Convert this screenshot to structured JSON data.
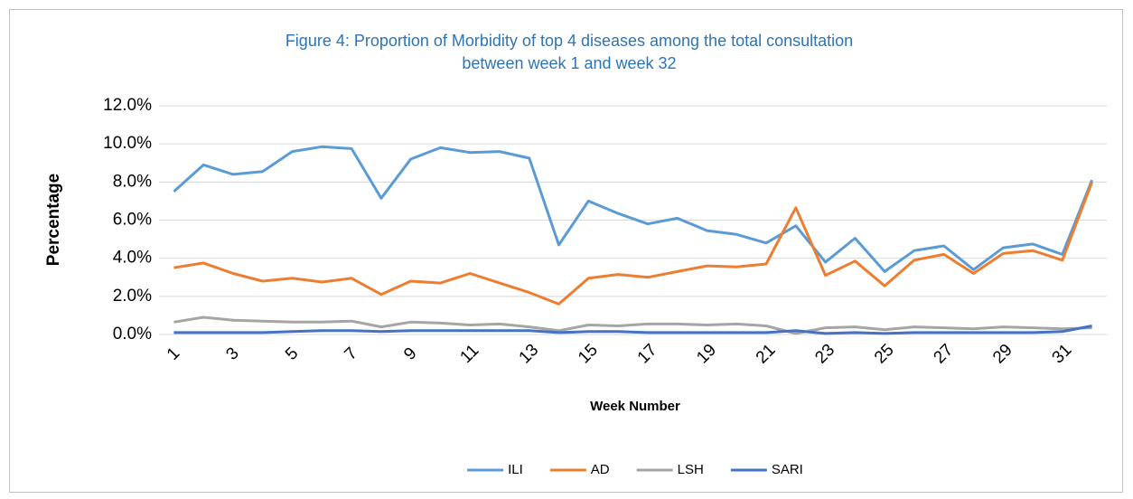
{
  "chart_data": {
    "type": "line",
    "title": [
      "Figure 4: Proportion of Morbidity of top 4 diseases among the total consultation",
      "between week 1 and week 32"
    ],
    "x_label": "Week Number",
    "y_label": "Percentage",
    "categories": [
      "1",
      null,
      "3",
      null,
      "5",
      null,
      "7",
      null,
      "9",
      null,
      "11",
      null,
      "13",
      null,
      "15",
      null,
      "17",
      null,
      "19",
      null,
      "21",
      null,
      "23",
      null,
      "25",
      null,
      "27",
      null,
      "29",
      null,
      "31",
      null
    ],
    "series": [
      {
        "name": "ILI",
        "color": "#5b9bd5",
        "values": [
          7.5,
          8.9,
          8.4,
          8.55,
          9.6,
          9.85,
          9.75,
          7.15,
          9.2,
          9.8,
          9.55,
          9.6,
          9.25,
          4.7,
          7.0,
          6.35,
          5.8,
          6.1,
          5.45,
          5.25,
          4.8,
          5.7,
          3.8,
          5.05,
          3.3,
          4.4,
          4.65,
          3.4,
          4.55,
          4.75,
          4.2,
          8.1
        ]
      },
      {
        "name": "AD",
        "color": "#ed7d31",
        "values": [
          3.5,
          3.75,
          3.2,
          2.8,
          2.95,
          2.75,
          2.95,
          2.1,
          2.8,
          2.7,
          3.2,
          2.7,
          2.2,
          1.6,
          2.95,
          3.15,
          3.0,
          3.3,
          3.6,
          3.55,
          3.7,
          6.65,
          3.1,
          3.85,
          2.55,
          3.9,
          4.2,
          3.2,
          4.25,
          4.4,
          3.9,
          8.0
        ]
      },
      {
        "name": "LSH",
        "color": "#a5a5a5",
        "values": [
          0.65,
          0.9,
          0.75,
          0.7,
          0.65,
          0.65,
          0.7,
          0.4,
          0.65,
          0.6,
          0.5,
          0.55,
          0.4,
          0.2,
          0.5,
          0.45,
          0.55,
          0.55,
          0.5,
          0.55,
          0.45,
          0.05,
          0.35,
          0.4,
          0.25,
          0.4,
          0.35,
          0.3,
          0.4,
          0.35,
          0.3,
          0.35
        ]
      },
      {
        "name": "SARI",
        "color": "#4472c4",
        "values": [
          0.1,
          0.1,
          0.1,
          0.1,
          0.15,
          0.2,
          0.2,
          0.15,
          0.2,
          0.2,
          0.2,
          0.2,
          0.2,
          0.1,
          0.15,
          0.15,
          0.1,
          0.1,
          0.1,
          0.1,
          0.1,
          0.2,
          0.05,
          0.1,
          0.05,
          0.1,
          0.1,
          0.1,
          0.1,
          0.1,
          0.15,
          0.45
        ]
      }
    ],
    "ylim": [
      0,
      12
    ],
    "yticks": [
      {
        "value": 0,
        "label": "0.0%"
      },
      {
        "value": 2,
        "label": "2.0%"
      },
      {
        "value": 4,
        "label": "4.0%"
      },
      {
        "value": 6,
        "label": "6.0%"
      },
      {
        "value": 8,
        "label": "8.0%"
      },
      {
        "value": 10,
        "label": "10.0%"
      },
      {
        "value": 12,
        "label": "12.0%"
      }
    ],
    "grid": true,
    "legend": "bottom"
  }
}
